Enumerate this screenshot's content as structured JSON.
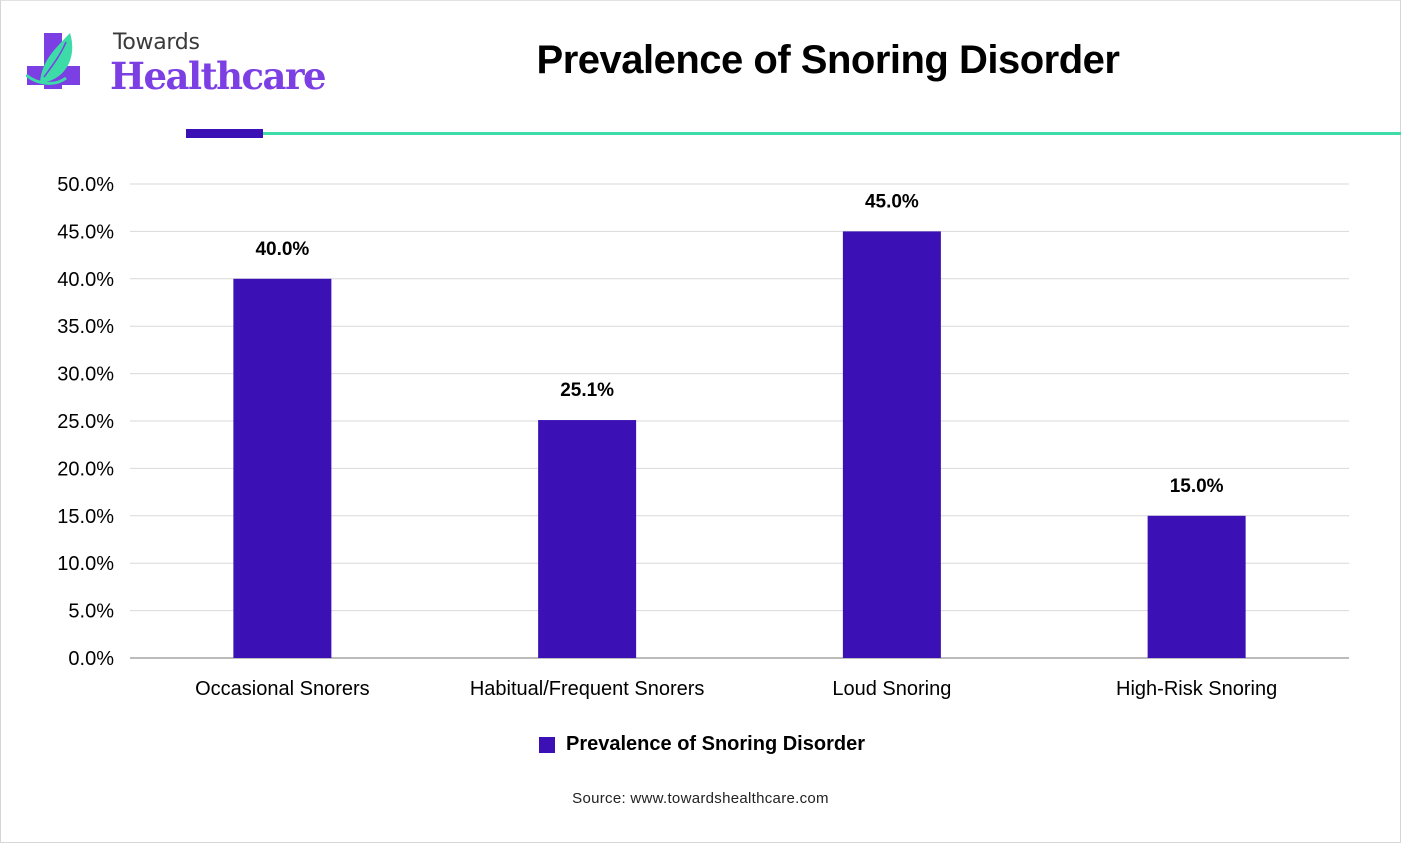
{
  "brand": {
    "line1": "Towards",
    "line2": "Healthcare",
    "colors": {
      "cross": "#7b3fe4",
      "leaf": "#3ddba8",
      "text": "#3a3a3a"
    }
  },
  "header": {
    "title": "Prevalence of Snoring Disorder",
    "accent_colors": [
      "#3b10b5",
      "#3ddba8"
    ]
  },
  "chart_data": {
    "type": "bar",
    "title": "Prevalence of Snoring Disorder",
    "xlabel": "",
    "ylabel": "",
    "categories": [
      "Occasional Snorers",
      "Habitual/Frequent Snorers",
      "Loud Snoring",
      "High-Risk Snoring"
    ],
    "series": [
      {
        "name": "Prevalence of Snoring Disorder",
        "color": "#3b10b5",
        "values": [
          40.0,
          25.1,
          45.0,
          15.0
        ],
        "labels": [
          "40.0%",
          "25.1%",
          "45.0%",
          "15.0%"
        ]
      }
    ],
    "ylim": [
      0,
      50
    ],
    "yticks": [
      0,
      5,
      10,
      15,
      20,
      25,
      30,
      35,
      40,
      45,
      50
    ],
    "ytick_labels": [
      "0.0%",
      "5.0%",
      "10.0%",
      "15.0%",
      "20.0%",
      "25.0%",
      "30.0%",
      "35.0%",
      "40.0%",
      "45.0%",
      "50.0%"
    ],
    "grid": true,
    "legend": "bottom-center"
  },
  "footer": {
    "source": "Source: www.towardshealthcare.com"
  }
}
